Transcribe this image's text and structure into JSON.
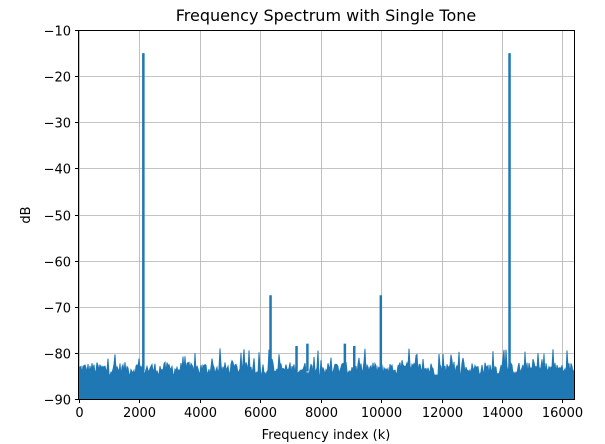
{
  "chart_data": {
    "type": "line",
    "title": "Frequency Spectrum with Single Tone",
    "xlabel": "Frequency index (k)",
    "ylabel": "dB",
    "xlim": [
      0,
      16384
    ],
    "ylim": [
      -90,
      -10
    ],
    "xticks": [
      0,
      2000,
      4000,
      6000,
      8000,
      10000,
      12000,
      14000,
      16000
    ],
    "yticks": [
      -90,
      -80,
      -70,
      -60,
      -50,
      -40,
      -30,
      -20,
      -10
    ],
    "grid": true,
    "color": "#1f77b4",
    "noise_floor": {
      "min": -90,
      "typical_max": -82,
      "peak_max": -79
    },
    "peaks": [
      {
        "x": 2130,
        "y": -15
      },
      {
        "x": 6340,
        "y": -67.5
      },
      {
        "x": 7200,
        "y": -78.5
      },
      {
        "x": 7560,
        "y": -78
      },
      {
        "x": 8800,
        "y": -78
      },
      {
        "x": 9110,
        "y": -78.5
      },
      {
        "x": 9990,
        "y": -67.5
      },
      {
        "x": 14250,
        "y": -15
      }
    ]
  }
}
